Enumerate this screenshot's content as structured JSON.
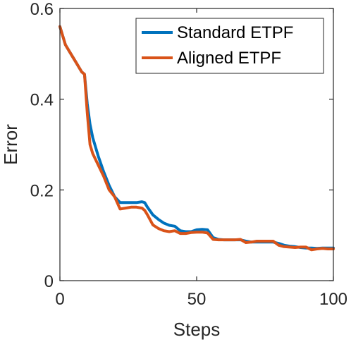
{
  "chart_data": {
    "type": "line",
    "xlabel": "Steps",
    "ylabel": "Error",
    "xlim": [
      0,
      100
    ],
    "ylim": [
      0,
      0.6
    ],
    "xticks": [
      0,
      50,
      100
    ],
    "xtick_labels": [
      "0",
      "50",
      "100"
    ],
    "yticks": [
      0,
      0.2,
      0.4,
      0.6
    ],
    "ytick_labels": [
      "0",
      "0.2",
      "0.4",
      "0.6"
    ],
    "grid": false,
    "legend_position": "top-right",
    "series": [
      {
        "name": "Standard ETPF",
        "color": "#0072BD",
        "x": [
          0,
          1,
          2,
          4,
          6,
          8,
          9,
          10,
          11,
          12,
          14,
          16,
          18,
          20,
          22,
          24,
          26,
          28,
          30,
          31,
          32,
          34,
          36,
          38,
          40,
          42,
          44,
          46,
          48,
          50,
          52,
          54,
          56,
          58,
          60,
          62,
          64,
          66,
          68,
          70,
          72,
          74,
          76,
          78,
          80,
          82,
          84,
          86,
          88,
          90,
          92,
          94,
          96,
          98,
          100
        ],
        "y": [
          0.56,
          0.54,
          0.52,
          0.5,
          0.48,
          0.46,
          0.455,
          0.39,
          0.345,
          0.315,
          0.275,
          0.24,
          0.21,
          0.185,
          0.172,
          0.172,
          0.172,
          0.172,
          0.174,
          0.172,
          0.162,
          0.145,
          0.135,
          0.127,
          0.122,
          0.12,
          0.11,
          0.108,
          0.108,
          0.112,
          0.113,
          0.112,
          0.095,
          0.091,
          0.09,
          0.09,
          0.09,
          0.09,
          0.087,
          0.085,
          0.085,
          0.085,
          0.085,
          0.085,
          0.082,
          0.078,
          0.076,
          0.075,
          0.073,
          0.072,
          0.072,
          0.071,
          0.072,
          0.072,
          0.072
        ]
      },
      {
        "name": "Aligned ETPF",
        "color": "#D95319",
        "x": [
          0,
          1,
          2,
          4,
          6,
          8,
          9,
          10,
          11,
          12,
          14,
          16,
          18,
          20,
          22,
          24,
          26,
          28,
          30,
          31,
          32,
          34,
          36,
          38,
          40,
          42,
          44,
          46,
          48,
          50,
          52,
          54,
          56,
          58,
          60,
          62,
          64,
          66,
          68,
          70,
          72,
          74,
          76,
          78,
          80,
          82,
          84,
          86,
          88,
          90,
          92,
          94,
          96,
          98,
          100
        ],
        "y": [
          0.56,
          0.54,
          0.52,
          0.5,
          0.48,
          0.46,
          0.455,
          0.37,
          0.3,
          0.28,
          0.255,
          0.23,
          0.2,
          0.185,
          0.158,
          0.16,
          0.162,
          0.162,
          0.16,
          0.155,
          0.145,
          0.123,
          0.115,
          0.11,
          0.108,
          0.11,
          0.104,
          0.104,
          0.106,
          0.107,
          0.107,
          0.105,
          0.091,
          0.09,
          0.09,
          0.09,
          0.09,
          0.091,
          0.084,
          0.085,
          0.087,
          0.087,
          0.087,
          0.087,
          0.078,
          0.075,
          0.074,
          0.073,
          0.074,
          0.074,
          0.068,
          0.07,
          0.071,
          0.07,
          0.07
        ]
      }
    ]
  }
}
